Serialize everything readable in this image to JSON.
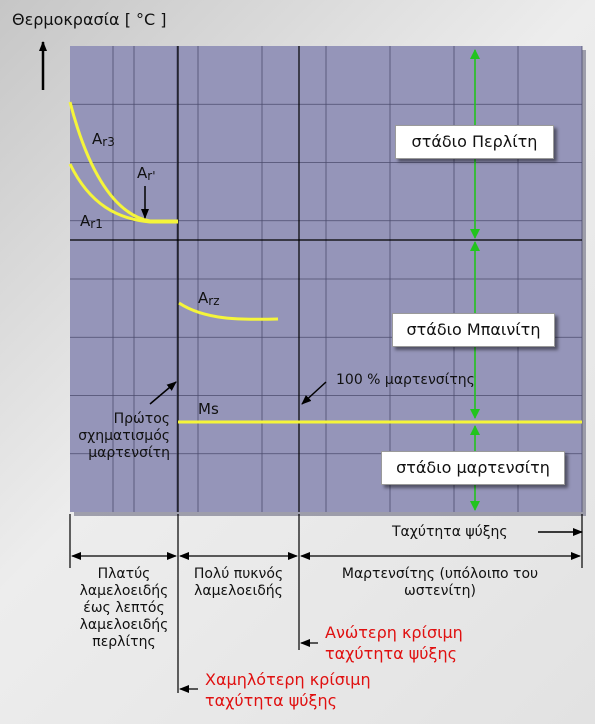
{
  "axis": {
    "y_label": "Θερμοκρασία [ °C ]",
    "x_label": "Ταχύτητα ψύξης"
  },
  "curves": {
    "ar3": {
      "main": "A",
      "sub": "r3"
    },
    "ar_prime": {
      "main": "A",
      "sub": "r'"
    },
    "ar1": {
      "main": "A",
      "sub": "r1"
    },
    "arz": {
      "main": "A",
      "sub": "rz"
    },
    "ms": "Ms"
  },
  "annotations": {
    "first_martensite": "Πρώτος σχηματισμός μαρτενσίτη",
    "full_martensite": "100 % μαρτενσίτης"
  },
  "stages": {
    "pearlite": "στάδιο Περλίτη",
    "bainite": "στάδιο Μπαινίτη",
    "martensite": "στάδιο μαρτενσίτη"
  },
  "regions": {
    "r1": "Πλατύς λαμελοειδής έως λεπτός λαμελοειδής περλίτης",
    "r2": "Πολύ πυκνός λαμελοειδής",
    "r3": "Μαρτενσίτης (υπόλοιπο του ωστενίτη)"
  },
  "critical": {
    "upper": "Ανώτερη κρίσιμη ταχύτητα ψύξης",
    "lower": "Χαμηλότερη κρίσιμη ταχύτητα ψύξης"
  },
  "colors": {
    "plot_bg": "#9595b9",
    "grid": "#4c4c6e",
    "curve": "#f5f53a",
    "stage_arrow": "#22c41d",
    "critical_text": "#e01010"
  }
}
